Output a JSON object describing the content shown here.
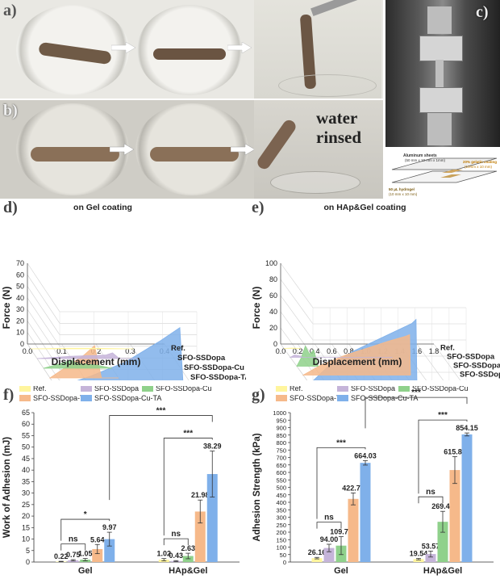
{
  "panels": {
    "a": {
      "label": "a)"
    },
    "b": {
      "label": "b)",
      "caption": "water rinsed"
    },
    "c": {
      "label": "c)",
      "specimen_labels": [
        "Aluminum sheets",
        "(50 mm x 10 mm x 1mm)",
        "20% gelatin coating",
        "(10mm x 10 mm)",
        "50 μL hydrogel",
        "(10 mm x 10 mm)"
      ]
    },
    "d": {
      "label": "d)",
      "title": "on Gel coating"
    },
    "e": {
      "label": "e)",
      "title": "on HAp&Gel coating"
    },
    "f": {
      "label": "f)"
    },
    "g": {
      "label": "g)"
    }
  },
  "colors": {
    "ref": "#fff59d",
    "ssdopa": "#c5b4d9",
    "cu": "#8fd18b",
    "ta": "#f6b98a",
    "cuta": "#7fb0ea"
  },
  "chart_data": [
    {
      "id": "d",
      "type": "area",
      "title": "on Gel coating",
      "xlabel": "Displacement (mm)",
      "ylabel": "Force (N)",
      "xlim": [
        0.0,
        0.4
      ],
      "ylim": [
        0,
        70
      ],
      "xticks": [
        "0.0",
        "0.1",
        "0.2",
        "0.3",
        "0.4"
      ],
      "yticks": [
        "0",
        "10",
        "20",
        "30",
        "40",
        "50",
        "60",
        "70"
      ],
      "series": [
        {
          "name": "SFO-SSDopa-Cu-TA",
          "x": [
            0.0,
            0.1,
            0.2,
            0.3,
            0.36,
            0.37,
            0.4
          ],
          "y": [
            0,
            10,
            22,
            40,
            52,
            0,
            0
          ]
        },
        {
          "name": "SFO-SSDopa-TA",
          "x": [
            0.0,
            0.05,
            0.1,
            0.13,
            0.15,
            0.2
          ],
          "y": [
            0,
            10,
            20,
            28,
            0,
            0
          ]
        },
        {
          "name": "SFO-SSDopa-Cu",
          "x": [
            0.0,
            0.05,
            0.08,
            0.1,
            0.15,
            0.2
          ],
          "y": [
            0,
            4,
            7,
            4,
            3,
            0
          ]
        },
        {
          "name": "SFO-SSDopa",
          "x": [
            0.0,
            0.1,
            0.2,
            0.22,
            0.24,
            0.3
          ],
          "y": [
            0,
            2,
            3,
            5,
            0,
            0
          ]
        },
        {
          "name": "Ref.",
          "x": [
            0.0,
            0.1,
            0.2,
            0.3
          ],
          "y": [
            0,
            0.5,
            0.5,
            0
          ]
        }
      ]
    },
    {
      "id": "e",
      "type": "area",
      "title": "on HAp&Gel coating",
      "xlabel": "Displacement (mm)",
      "ylabel": "Force (N)",
      "xlim": [
        0.0,
        1.8
      ],
      "ylim": [
        0,
        100
      ],
      "xticks": [
        "0.0",
        "0.2",
        "0.4",
        "0.6",
        "0.8",
        "1.0",
        "1.2",
        "1.4",
        "1.6",
        "1.8"
      ],
      "yticks": [
        "0",
        "20",
        "40",
        "60",
        "80",
        "100"
      ],
      "series": [
        {
          "name": "SFO-SSDopa-Cu-TA",
          "x": [
            0.0,
            0.2,
            0.5,
            0.8,
            1.0,
            1.2,
            1.25,
            1.26
          ],
          "y": [
            0,
            20,
            40,
            55,
            65,
            75,
            80,
            0
          ]
        },
        {
          "name": "SFO-SSDopa-TA",
          "x": [
            0.0,
            0.2,
            0.5,
            0.8,
            1.0,
            1.2,
            1.25,
            1.26
          ],
          "y": [
            0,
            12,
            25,
            35,
            42,
            48,
            50,
            0
          ]
        },
        {
          "name": "SFO-SSDopa-Cu",
          "x": [
            0.0,
            0.05,
            0.1,
            0.15,
            0.2,
            0.25
          ],
          "y": [
            0,
            10,
            25,
            15,
            20,
            0
          ]
        },
        {
          "name": "SFO-SSDopa",
          "x": [
            0.0,
            0.05,
            0.1,
            0.15,
            1.2
          ],
          "y": [
            0,
            3,
            2,
            0,
            0
          ]
        },
        {
          "name": "Ref.",
          "x": [
            0.0,
            0.1,
            0.2
          ],
          "y": [
            0,
            0.5,
            0
          ]
        }
      ]
    },
    {
      "id": "f",
      "type": "bar",
      "ylabel": "Work of Adhesion (mJ)",
      "ylim": [
        0,
        65
      ],
      "yticks": [
        "0",
        "5",
        "10",
        "15",
        "20",
        "25",
        "30",
        "35",
        "40",
        "45",
        "50",
        "55",
        "60",
        "65"
      ],
      "categories": [
        "Gel",
        "HAp&Gel"
      ],
      "series": [
        {
          "name": "Ref.",
          "values": [
            0.22,
            1.02
          ],
          "errors": [
            0.1,
            0.5
          ],
          "labels": [
            "0.22",
            "1.02"
          ]
        },
        {
          "name": "SFO-SSDopa",
          "values": [
            0.75,
            0.43
          ],
          "errors": [
            0.3,
            0.2
          ],
          "labels": [
            "0.75",
            "0.43"
          ]
        },
        {
          "name": "SFO-SSDopa-Cu",
          "values": [
            1.05,
            2.63
          ],
          "errors": [
            0.5,
            1.2
          ],
          "labels": [
            "1.05",
            "2.63"
          ]
        },
        {
          "name": "SFO-SSDopa-TA",
          "values": [
            5.64,
            21.98
          ],
          "errors": [
            2.0,
            5.0
          ],
          "labels": [
            "5.64",
            "21.98"
          ]
        },
        {
          "name": "SFO-SSDopa-Cu-TA",
          "values": [
            9.97,
            38.29
          ],
          "errors": [
            3.0,
            10.0
          ],
          "labels": [
            "9.97",
            "38.29"
          ]
        }
      ],
      "significance": [
        {
          "text": "ns",
          "group": "Gel"
        },
        {
          "text": "*",
          "group": "Gel"
        },
        {
          "text": "ns",
          "group": "HAp&Gel"
        },
        {
          "text": "***",
          "group": "HAp&Gel"
        },
        {
          "text": "***",
          "group": "between"
        }
      ],
      "legend_position": "top"
    },
    {
      "id": "g",
      "type": "bar",
      "ylabel": "Adhesion Strength (kPa)",
      "ylim": [
        0,
        1000
      ],
      "yticks": [
        "0",
        "50",
        "100",
        "150",
        "200",
        "250",
        "300",
        "350",
        "400",
        "450",
        "500",
        "550",
        "600",
        "650",
        "700",
        "750",
        "800",
        "850",
        "900",
        "950",
        "1000"
      ],
      "categories": [
        "Gel",
        "HAp&Gel"
      ],
      "series": [
        {
          "name": "Ref.",
          "values": [
            26.16,
            19.54
          ],
          "errors": [
            5,
            5
          ],
          "labels": [
            "26.16",
            "19.54"
          ]
        },
        {
          "name": "SFO-SSDopa",
          "values": [
            94.0,
            53.57
          ],
          "errors": [
            25,
            20
          ],
          "labels": [
            "94.00",
            "53.57"
          ]
        },
        {
          "name": "SFO-SSDopa-Cu",
          "values": [
            109.79,
            269.4
          ],
          "errors": [
            60,
            70
          ],
          "labels": [
            "109.79",
            "269.40"
          ]
        },
        {
          "name": "SFO-SSDopa-TA",
          "values": [
            422.72,
            615.83
          ],
          "errors": [
            40,
            90
          ],
          "labels": [
            "422.72",
            "615.83"
          ]
        },
        {
          "name": "SFO-SSDopa-Cu-TA",
          "values": [
            664.03,
            854.15
          ],
          "errors": [
            15,
            10
          ],
          "labels": [
            "664.03",
            "854.15"
          ]
        }
      ],
      "significance": [
        {
          "text": "ns",
          "group": "Gel"
        },
        {
          "text": "***",
          "group": "Gel"
        },
        {
          "text": "ns",
          "group": "HAp&Gel"
        },
        {
          "text": "***",
          "group": "HAp&Gel"
        },
        {
          "text": "***",
          "group": "between"
        }
      ],
      "legend_position": "top"
    }
  ]
}
